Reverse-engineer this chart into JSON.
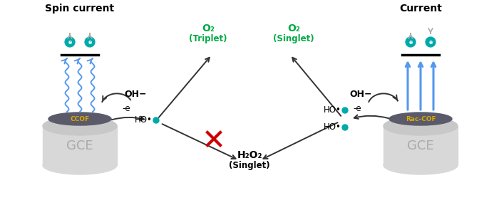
{
  "title_left": "Spin current",
  "title_right": "Current",
  "gce_label": "GCE",
  "cof_left_label": "CCOF",
  "cof_right_label": "Rac-COF",
  "oh_minus": "OH−",
  "minus_e": "-e",
  "ho_radical": "HO•",
  "o2_triplet_1": "O₂",
  "o2_triplet_2": "(Triplet)",
  "o2_singlet_1": "O₂",
  "o2_singlet_2": "(Singlet)",
  "h2o2_1": "H₂O₂",
  "h2o2_2": "(Singlet)",
  "green_color": "#00aa44",
  "dark_gray": "#333333",
  "light_gray": "#cccccc",
  "med_gray": "#aaaaaa",
  "gce_top": "#c8c8c8",
  "gce_body": "#d8d8d8",
  "cof_color": "#5a5a6a",
  "yellow_cof": "#ddaa00",
  "blue_arrow": "#5599ee",
  "teal_e": "#00aaaa",
  "red_x": "#cc0000",
  "bg": "#ffffff"
}
